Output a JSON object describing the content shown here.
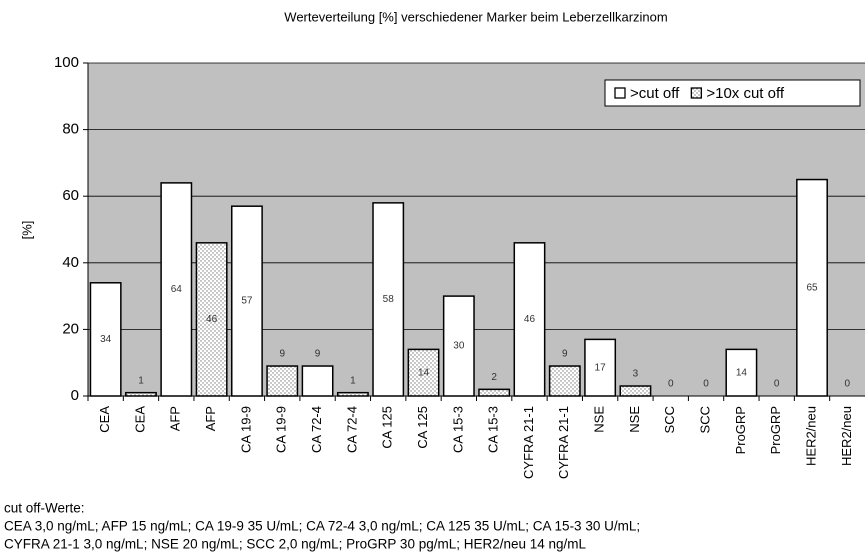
{
  "chart_data": {
    "type": "bar",
    "title": "Werteverteilung [%] verschiedener Marker beim Leberzellkarzinom",
    "y_label": "[%]",
    "categories": [
      "CEA",
      "CEA",
      "AFP",
      "AFP",
      "CA 19-9",
      "CA 19-9",
      "CA 72-4",
      "CA 72-4",
      "CA 125",
      "CA 125",
      "CA 15-3",
      "CA 15-3",
      "CYFRA 21-1",
      "CYFRA 21-1",
      "NSE",
      "NSE",
      "SCC",
      "SCC",
      "ProGRP",
      "ProGRP",
      "HER2/neu",
      "HER2/neu"
    ],
    "series": [
      {
        "name": ">cut off",
        "color": "#ffffff",
        "pattern": "none",
        "values": [
          34,
          null,
          64,
          null,
          57,
          null,
          9,
          null,
          58,
          null,
          30,
          null,
          46,
          null,
          17,
          null,
          0,
          null,
          14,
          null,
          65,
          null
        ]
      },
      {
        "name": ">10x cut off",
        "color": "#ffffff",
        "pattern": "dots",
        "values": [
          null,
          1,
          null,
          46,
          null,
          9,
          null,
          1,
          null,
          14,
          null,
          2,
          null,
          9,
          null,
          3,
          null,
          0,
          null,
          0,
          null,
          0
        ]
      }
    ],
    "ylim": [
      0,
      100
    ],
    "yticks": [
      0,
      20,
      40,
      60,
      80,
      100
    ],
    "grid": true,
    "legend": "top-right",
    "plot_background": "#c0c0c0",
    "footnote": [
      "cut off-Werte:",
      "CEA  3,0 ng/mL; AFP 15 ng/mL; CA 19-9  35 U/mL; CA 72-4  3,0 ng/mL; CA 125  35 U/mL; CA 15-3  30 U/mL;",
      "CYFRA 21-1  3,0 ng/mL; NSE 20 ng/mL; SCC 2,0 ng/mL; ProGRP 30 pg/mL; HER2/neu 14 ng/mL"
    ]
  }
}
